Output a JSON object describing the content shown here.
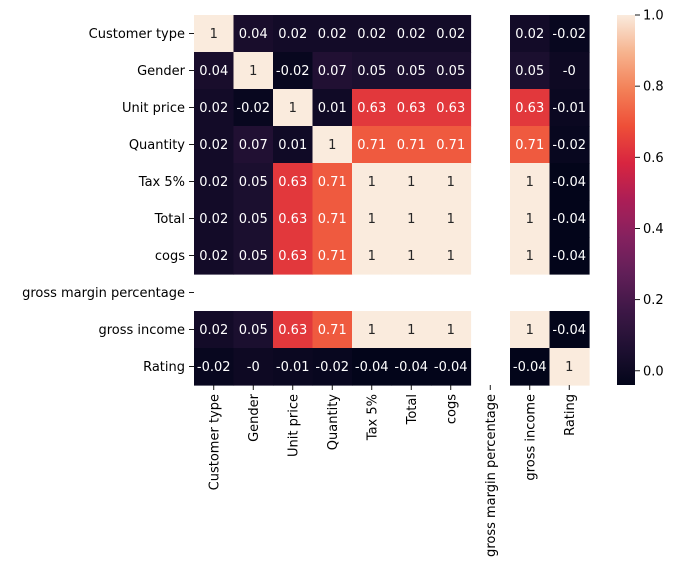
{
  "chart_data": {
    "type": "heatmap",
    "title": "",
    "xlabel": "",
    "ylabel": "",
    "rows": [
      "Customer type",
      "Gender",
      "Unit price",
      "Quantity",
      "Tax 5%",
      "Total",
      "cogs",
      "gross margin percentage",
      "gross income",
      "Rating"
    ],
    "columns": [
      "Customer type",
      "Gender",
      "Unit price",
      "Quantity",
      "Tax 5%",
      "Total",
      "cogs",
      "gross margin percentage",
      "gross income",
      "Rating"
    ],
    "values": [
      [
        1,
        0.04,
        0.02,
        0.02,
        0.02,
        0.02,
        0.02,
        null,
        0.02,
        -0.02
      ],
      [
        0.04,
        1,
        -0.02,
        0.07,
        0.05,
        0.05,
        0.05,
        null,
        0.05,
        -0.0
      ],
      [
        0.02,
        -0.02,
        1,
        0.01,
        0.63,
        0.63,
        0.63,
        null,
        0.63,
        -0.01
      ],
      [
        0.02,
        0.07,
        0.01,
        1,
        0.71,
        0.71,
        0.71,
        null,
        0.71,
        -0.02
      ],
      [
        0.02,
        0.05,
        0.63,
        0.71,
        1,
        1,
        1,
        null,
        1,
        -0.04
      ],
      [
        0.02,
        0.05,
        0.63,
        0.71,
        1,
        1,
        1,
        null,
        1,
        -0.04
      ],
      [
        0.02,
        0.05,
        0.63,
        0.71,
        1,
        1,
        1,
        null,
        1,
        -0.04
      ],
      [
        null,
        null,
        null,
        null,
        null,
        null,
        null,
        null,
        null,
        null
      ],
      [
        0.02,
        0.05,
        0.63,
        0.71,
        1,
        1,
        1,
        null,
        1,
        -0.04
      ],
      [
        -0.02,
        -0.0,
        -0.01,
        -0.02,
        -0.04,
        -0.04,
        -0.04,
        null,
        -0.04,
        1
      ]
    ],
    "annotations": [
      [
        "1",
        "0.04",
        "0.02",
        "0.02",
        "0.02",
        "0.02",
        "0.02",
        "",
        "0.02",
        "-0.02"
      ],
      [
        "0.04",
        "1",
        "-0.02",
        "0.07",
        "0.05",
        "0.05",
        "0.05",
        "",
        "0.05",
        "-0"
      ],
      [
        "0.02",
        "-0.02",
        "1",
        "0.01",
        "0.63",
        "0.63",
        "0.63",
        "",
        "0.63",
        "-0.01"
      ],
      [
        "0.02",
        "0.07",
        "0.01",
        "1",
        "0.71",
        "0.71",
        "0.71",
        "",
        "0.71",
        "-0.02"
      ],
      [
        "0.02",
        "0.05",
        "0.63",
        "0.71",
        "1",
        "1",
        "1",
        "",
        "1",
        "-0.04"
      ],
      [
        "0.02",
        "0.05",
        "0.63",
        "0.71",
        "1",
        "1",
        "1",
        "",
        "1",
        "-0.04"
      ],
      [
        "0.02",
        "0.05",
        "0.63",
        "0.71",
        "1",
        "1",
        "1",
        "",
        "1",
        "-0.04"
      ],
      [
        "",
        "",
        "",
        "",
        "",
        "",
        "",
        "",
        "",
        ""
      ],
      [
        "0.02",
        "0.05",
        "0.63",
        "0.71",
        "1",
        "1",
        "1",
        "",
        "1",
        "-0.04"
      ],
      [
        "-0.02",
        "-0",
        "-0.01",
        "-0.02",
        "-0.04",
        "-0.04",
        "-0.04",
        "",
        "-0.04",
        "1"
      ]
    ],
    "colormap": "rocket",
    "vmin": -0.04,
    "vmax": 1,
    "colorbar_ticks": [
      0.0,
      0.2,
      0.4,
      0.6,
      0.8,
      1.0
    ],
    "colorbar_tick_labels": [
      "0.0",
      "0.2",
      "0.4",
      "0.6",
      "0.8",
      "1.0"
    ],
    "legend_position": "right"
  }
}
